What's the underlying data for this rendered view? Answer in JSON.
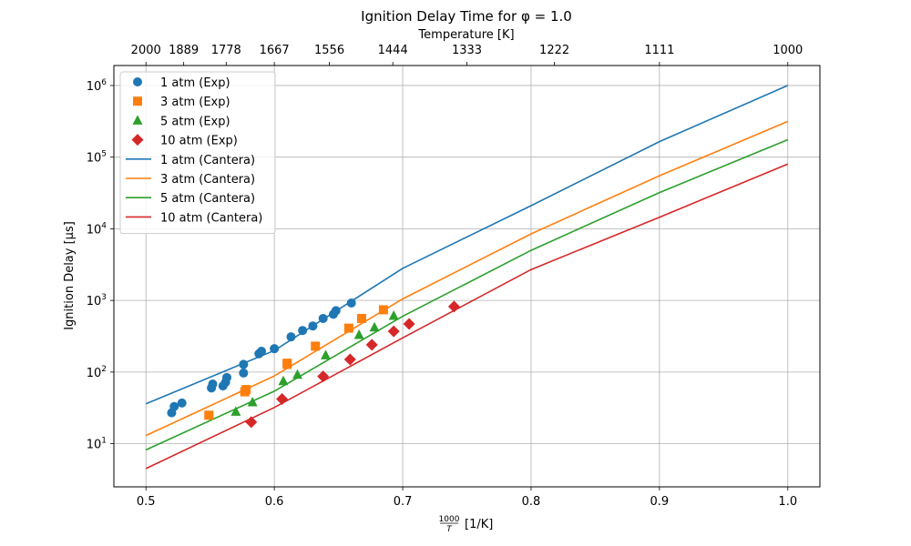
{
  "chart_data": {
    "type": "scatter",
    "title": "Ignition Delay Time for φ = 1.0",
    "xlabel_fraction_num": "1000",
    "xlabel_fraction_den": "T",
    "xlabel_suffix": "[1/K]",
    "ylabel": "Ignition Delay [μs]",
    "top_xlabel": "Temperature [K]",
    "xlim": [
      0.475,
      1.025
    ],
    "ylim": [
      2.5,
      1900000
    ],
    "yscale": "log",
    "grid": true,
    "legend_position": "top-left",
    "x_ticks": [
      {
        "value": 0.5,
        "label": "0.5"
      },
      {
        "value": 0.6,
        "label": "0.6"
      },
      {
        "value": 0.7,
        "label": "0.7"
      },
      {
        "value": 0.8,
        "label": "0.8"
      },
      {
        "value": 0.9,
        "label": "0.9"
      },
      {
        "value": 1.0,
        "label": "1.0"
      }
    ],
    "y_ticks": [
      {
        "value": 10,
        "base": "10",
        "exp": "1"
      },
      {
        "value": 100,
        "base": "10",
        "exp": "2"
      },
      {
        "value": 1000,
        "base": "10",
        "exp": "3"
      },
      {
        "value": 10000,
        "base": "10",
        "exp": "4"
      },
      {
        "value": 100000,
        "base": "10",
        "exp": "5"
      },
      {
        "value": 1000000,
        "base": "10",
        "exp": "6"
      }
    ],
    "top_ticks": [
      {
        "value": 0.5,
        "label": "2000"
      },
      {
        "value": 0.5294,
        "label": "1889"
      },
      {
        "value": 0.5625,
        "label": "1778"
      },
      {
        "value": 0.6,
        "label": "1667"
      },
      {
        "value": 0.6429,
        "label": "1556"
      },
      {
        "value": 0.6923,
        "label": "1444"
      },
      {
        "value": 0.75,
        "label": "1333"
      },
      {
        "value": 0.8182,
        "label": "1222"
      },
      {
        "value": 0.9,
        "label": "1111"
      },
      {
        "value": 1.0,
        "label": "1000"
      }
    ],
    "scatter_series": [
      {
        "name": "1 atm (Exp)",
        "color": "#1f77b4",
        "marker": "circle",
        "points": [
          [
            0.52,
            27
          ],
          [
            0.522,
            33
          ],
          [
            0.528,
            37
          ],
          [
            0.551,
            60
          ],
          [
            0.552,
            68
          ],
          [
            0.56,
            64
          ],
          [
            0.562,
            72
          ],
          [
            0.563,
            84
          ],
          [
            0.576,
            97
          ],
          [
            0.576,
            128
          ],
          [
            0.588,
            180
          ],
          [
            0.59,
            195
          ],
          [
            0.6,
            212
          ],
          [
            0.613,
            310
          ],
          [
            0.622,
            380
          ],
          [
            0.63,
            440
          ],
          [
            0.638,
            560
          ],
          [
            0.646,
            640
          ],
          [
            0.648,
            720
          ],
          [
            0.66,
            920
          ]
        ]
      },
      {
        "name": "3 atm (Exp)",
        "color": "#ff7f0e",
        "marker": "square",
        "points": [
          [
            0.549,
            25
          ],
          [
            0.577,
            53
          ],
          [
            0.578,
            57
          ],
          [
            0.61,
            128
          ],
          [
            0.61,
            133
          ],
          [
            0.632,
            230
          ],
          [
            0.658,
            410
          ],
          [
            0.668,
            560
          ],
          [
            0.685,
            740
          ]
        ]
      },
      {
        "name": "5 atm (Exp)",
        "color": "#2ca02c",
        "marker": "triangle",
        "points": [
          [
            0.57,
            28
          ],
          [
            0.583,
            38
          ],
          [
            0.607,
            75
          ],
          [
            0.618,
            92
          ],
          [
            0.64,
            172
          ],
          [
            0.666,
            330
          ],
          [
            0.678,
            420
          ],
          [
            0.693,
            610
          ]
        ]
      },
      {
        "name": "10 atm (Exp)",
        "color": "#d62728",
        "marker": "diamond",
        "points": [
          [
            0.582,
            20
          ],
          [
            0.606,
            42
          ],
          [
            0.638,
            87
          ],
          [
            0.659,
            150
          ],
          [
            0.676,
            240
          ],
          [
            0.693,
            370
          ],
          [
            0.705,
            470
          ],
          [
            0.74,
            820
          ]
        ]
      }
    ],
    "line_series": [
      {
        "name": "1 atm (Cantera)",
        "color": "#1f77b4",
        "points": [
          [
            0.5,
            36
          ],
          [
            0.6,
            200
          ],
          [
            0.7,
            2800
          ],
          [
            0.8,
            21000
          ],
          [
            0.9,
            165000
          ],
          [
            1.0,
            1000000
          ]
        ]
      },
      {
        "name": "3 atm (Cantera)",
        "color": "#ff7f0e",
        "points": [
          [
            0.5,
            13
          ],
          [
            0.6,
            88
          ],
          [
            0.7,
            1050
          ],
          [
            0.8,
            8500
          ],
          [
            0.9,
            55000
          ],
          [
            1.0,
            315000
          ]
        ]
      },
      {
        "name": "5 atm (Cantera)",
        "color": "#2ca02c",
        "points": [
          [
            0.5,
            8.2
          ],
          [
            0.6,
            54
          ],
          [
            0.7,
            600
          ],
          [
            0.8,
            5000
          ],
          [
            0.9,
            32000
          ],
          [
            1.0,
            175000
          ]
        ]
      },
      {
        "name": "10 atm (Cantera)",
        "color": "#d62728",
        "points": [
          [
            0.5,
            4.5
          ],
          [
            0.6,
            32
          ],
          [
            0.7,
            300
          ],
          [
            0.8,
            2700
          ],
          [
            0.9,
            14500
          ],
          [
            1.0,
            80000
          ]
        ]
      }
    ]
  }
}
